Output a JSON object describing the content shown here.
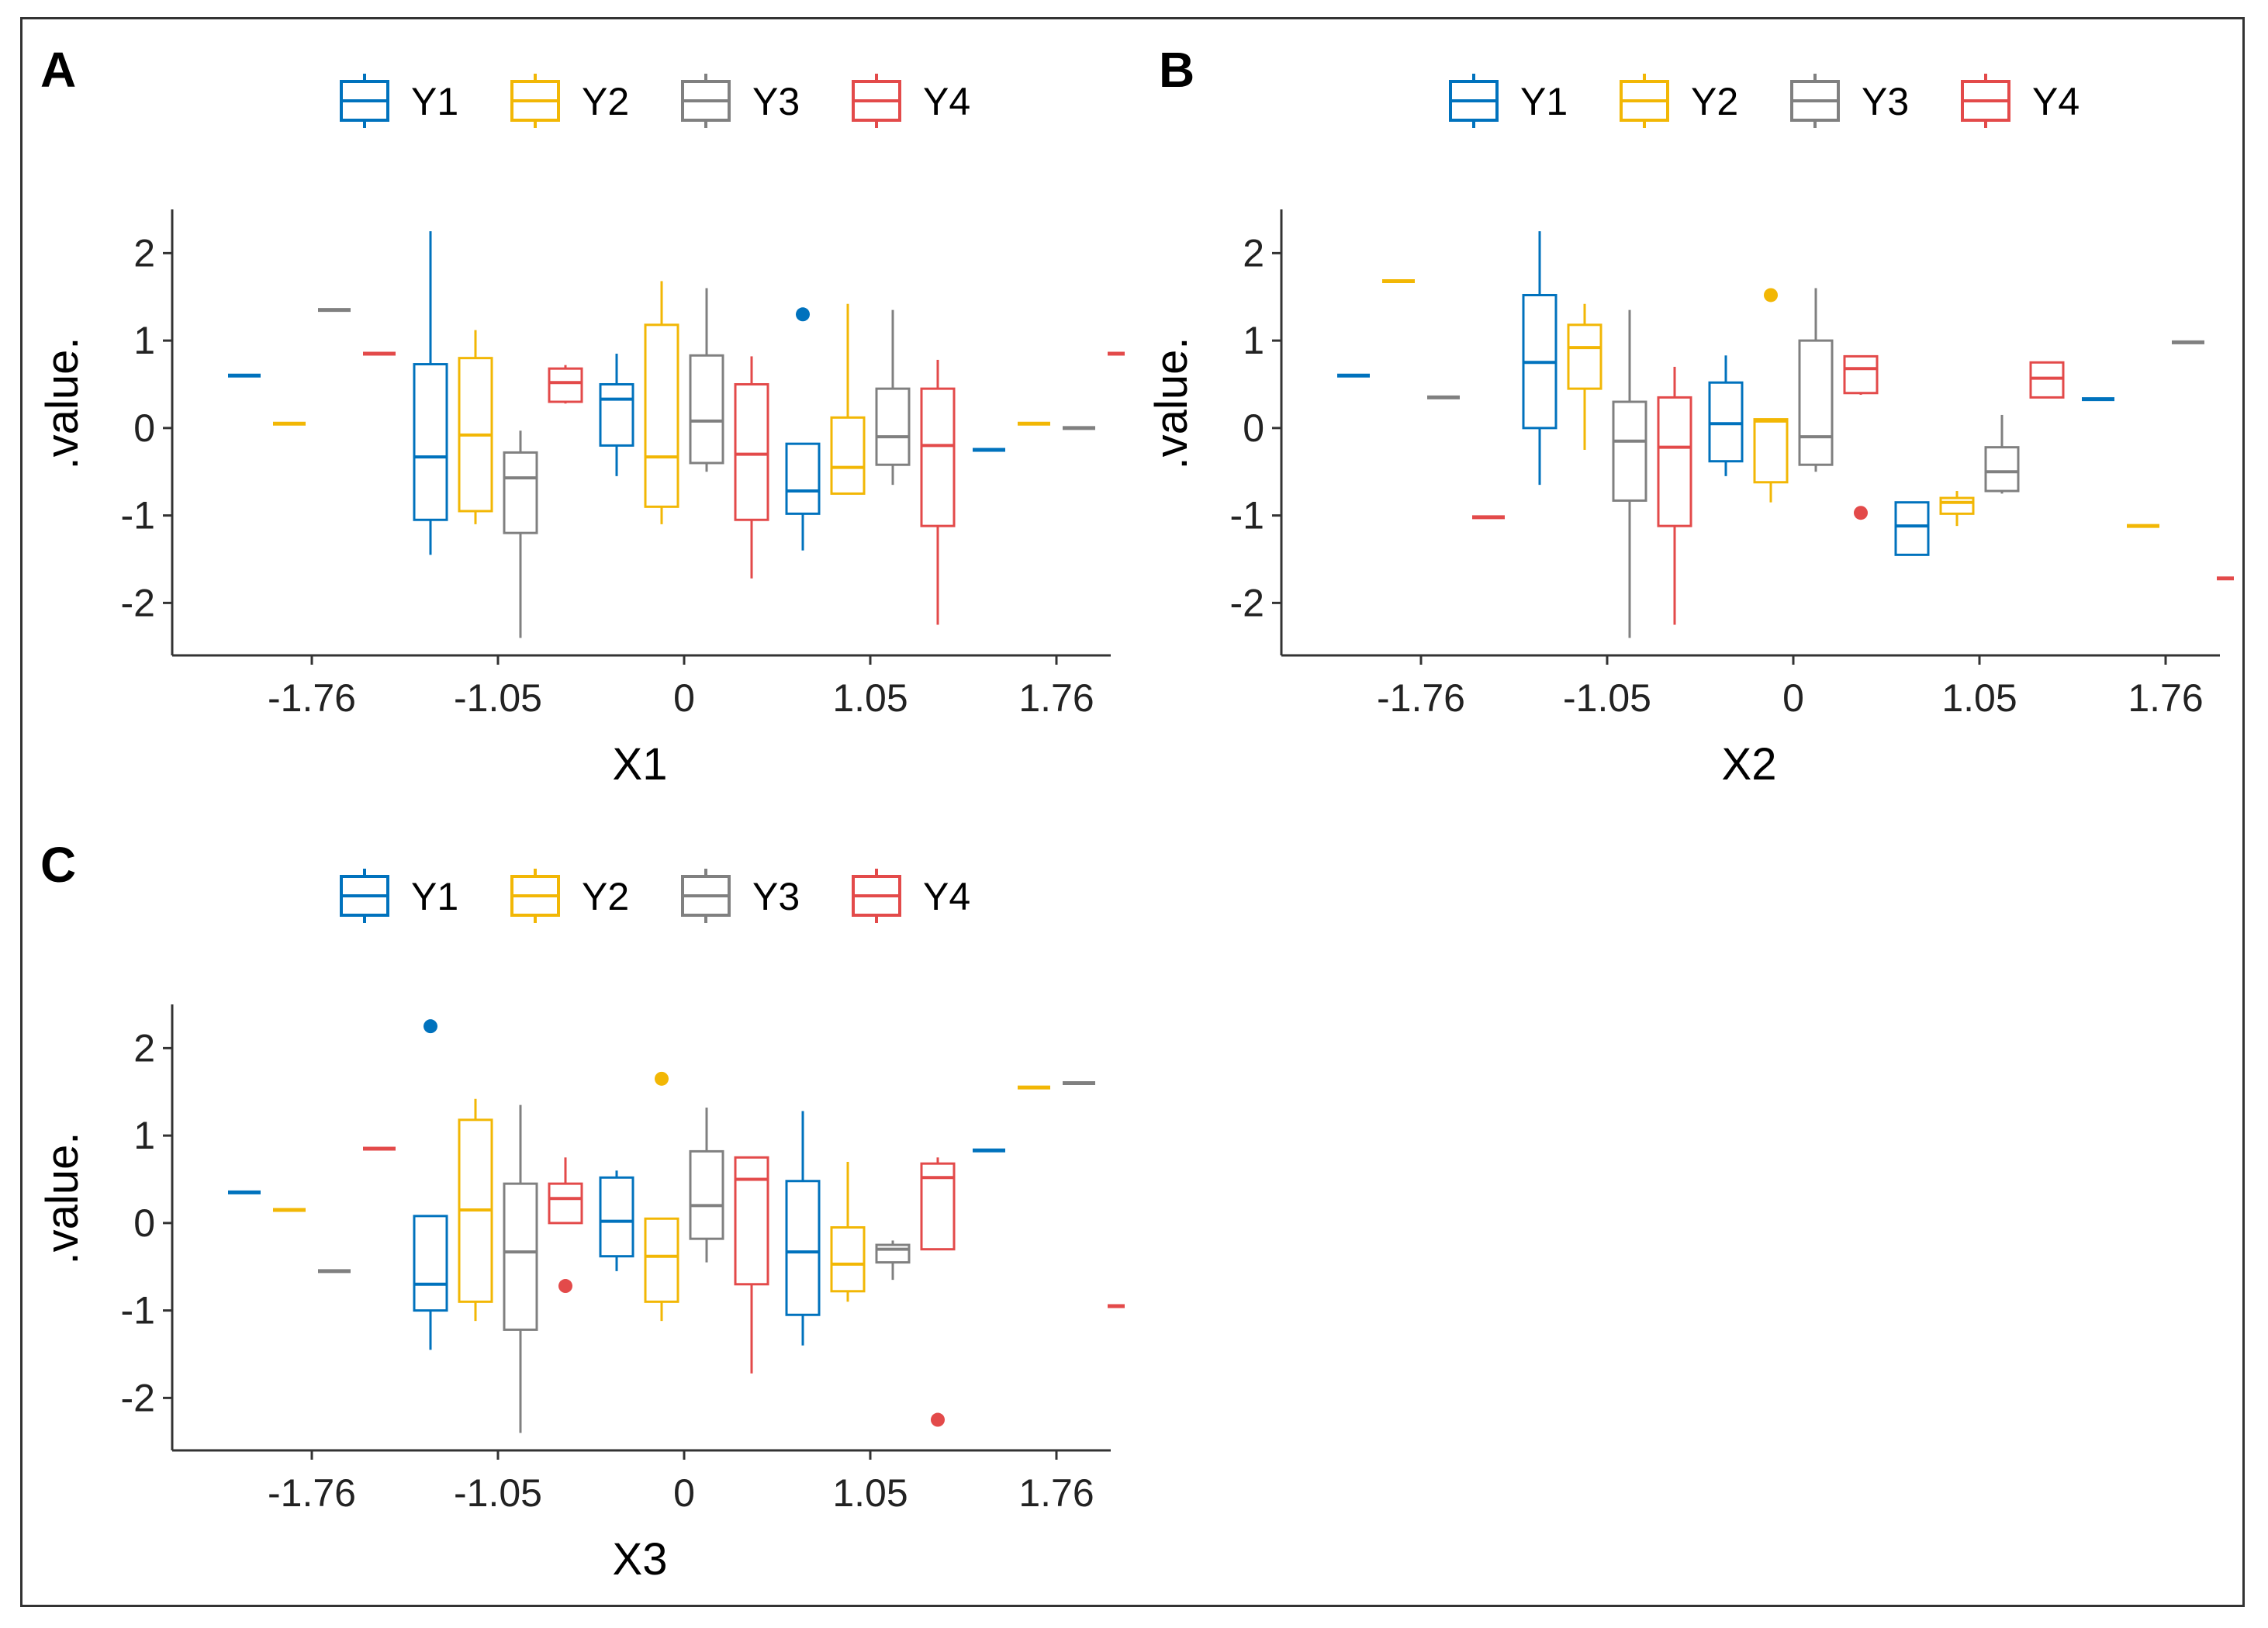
{
  "legend": {
    "series": [
      {
        "name": "Y1",
        "color": "#0072BD"
      },
      {
        "name": "Y2",
        "color": "#F2B705"
      },
      {
        "name": "Y3",
        "color": "#808080"
      },
      {
        "name": "Y4",
        "color": "#E34A4A"
      }
    ]
  },
  "chart_data": [
    {
      "type": "boxplot",
      "panel": "A",
      "xlabel": "X1",
      "ylabel": ".value.",
      "categories": [
        "-1.76",
        "-1.05",
        "0",
        "1.05",
        "1.76"
      ],
      "yticks": [
        "2",
        "1",
        "0",
        "-1",
        "-2"
      ],
      "ylim": [
        -2.6,
        2.5
      ],
      "series": [
        {
          "name": "Y1",
          "boxes": [
            {
              "min": 0.6,
              "q1": 0.6,
              "median": 0.6,
              "q3": 0.6,
              "max": 0.6,
              "outliers": []
            },
            {
              "min": -1.45,
              "q1": -1.05,
              "median": -0.33,
              "q3": 0.73,
              "max": 2.25,
              "outliers": []
            },
            {
              "min": -0.55,
              "q1": -0.2,
              "median": 0.33,
              "q3": 0.5,
              "max": 0.85,
              "outliers": []
            },
            {
              "min": -1.4,
              "q1": -0.98,
              "median": -0.72,
              "q3": -0.18,
              "max": -0.18,
              "outliers": [
                1.3
              ]
            },
            {
              "min": -0.25,
              "q1": -0.25,
              "median": -0.25,
              "q3": -0.25,
              "max": -0.25,
              "outliers": []
            }
          ]
        },
        {
          "name": "Y2",
          "boxes": [
            {
              "min": 0.05,
              "q1": 0.05,
              "median": 0.05,
              "q3": 0.05,
              "max": 0.05,
              "outliers": []
            },
            {
              "min": -1.1,
              "q1": -0.95,
              "median": -0.08,
              "q3": 0.8,
              "max": 1.12,
              "outliers": []
            },
            {
              "min": -1.1,
              "q1": -0.9,
              "median": -0.33,
              "q3": 1.18,
              "max": 1.68,
              "outliers": []
            },
            {
              "min": -0.75,
              "q1": -0.75,
              "median": -0.45,
              "q3": 0.12,
              "max": 1.42,
              "outliers": []
            },
            {
              "min": 0.05,
              "q1": 0.05,
              "median": 0.05,
              "q3": 0.05,
              "max": 0.05,
              "outliers": []
            }
          ]
        },
        {
          "name": "Y3",
          "boxes": [
            {
              "min": 1.35,
              "q1": 1.35,
              "median": 1.35,
              "q3": 1.35,
              "max": 1.35,
              "outliers": []
            },
            {
              "min": -2.4,
              "q1": -1.2,
              "median": -0.57,
              "q3": -0.28,
              "max": -0.03,
              "outliers": []
            },
            {
              "min": -0.5,
              "q1": -0.4,
              "median": 0.08,
              "q3": 0.83,
              "max": 1.6,
              "outliers": []
            },
            {
              "min": -0.65,
              "q1": -0.42,
              "median": -0.1,
              "q3": 0.45,
              "max": 1.35,
              "outliers": []
            },
            {
              "min": 0.0,
              "q1": 0.0,
              "median": 0.0,
              "q3": 0.0,
              "max": 0.0,
              "outliers": []
            }
          ]
        },
        {
          "name": "Y4",
          "boxes": [
            {
              "min": 0.85,
              "q1": 0.85,
              "median": 0.85,
              "q3": 0.85,
              "max": 0.85,
              "outliers": []
            },
            {
              "min": 0.28,
              "q1": 0.3,
              "median": 0.52,
              "q3": 0.68,
              "max": 0.72,
              "outliers": []
            },
            {
              "min": -1.72,
              "q1": -1.05,
              "median": -0.3,
              "q3": 0.5,
              "max": 0.82,
              "outliers": []
            },
            {
              "min": -2.25,
              "q1": -1.12,
              "median": -0.2,
              "q3": 0.45,
              "max": 0.78,
              "outliers": []
            },
            {
              "min": 0.85,
              "q1": 0.85,
              "median": 0.85,
              "q3": 0.85,
              "max": 0.85,
              "outliers": []
            }
          ]
        }
      ]
    },
    {
      "type": "boxplot",
      "panel": "B",
      "xlabel": "X2",
      "ylabel": ".value.",
      "categories": [
        "-1.76",
        "-1.05",
        "0",
        "1.05",
        "1.76"
      ],
      "yticks": [
        "2",
        "1",
        "0",
        "-1",
        "-2"
      ],
      "ylim": [
        -2.6,
        2.5
      ],
      "series": [
        {
          "name": "Y1",
          "boxes": [
            {
              "min": 0.6,
              "q1": 0.6,
              "median": 0.6,
              "q3": 0.6,
              "max": 0.6,
              "outliers": []
            },
            {
              "min": -0.65,
              "q1": 0.0,
              "median": 0.75,
              "q3": 1.52,
              "max": 2.25,
              "outliers": []
            },
            {
              "min": -0.55,
              "q1": -0.38,
              "median": 0.05,
              "q3": 0.52,
              "max": 0.83,
              "outliers": []
            },
            {
              "min": -1.45,
              "q1": -1.45,
              "median": -1.12,
              "q3": -0.85,
              "max": -0.85,
              "outliers": []
            },
            {
              "min": 0.33,
              "q1": 0.33,
              "median": 0.33,
              "q3": 0.33,
              "max": 0.33,
              "outliers": []
            }
          ]
        },
        {
          "name": "Y2",
          "boxes": [
            {
              "min": 1.68,
              "q1": 1.68,
              "median": 1.68,
              "q3": 1.68,
              "max": 1.68,
              "outliers": []
            },
            {
              "min": -0.25,
              "q1": 0.45,
              "median": 0.92,
              "q3": 1.18,
              "max": 1.42,
              "outliers": []
            },
            {
              "min": -0.85,
              "q1": -0.62,
              "median": 0.08,
              "q3": 0.1,
              "max": 0.1,
              "outliers": [
                1.52
              ]
            },
            {
              "min": -1.12,
              "q1": -0.98,
              "median": -0.85,
              "q3": -0.8,
              "max": -0.72,
              "outliers": []
            },
            {
              "min": -1.12,
              "q1": -1.12,
              "median": -1.12,
              "q3": -1.12,
              "max": -1.12,
              "outliers": []
            }
          ]
        },
        {
          "name": "Y3",
          "boxes": [
            {
              "min": 0.35,
              "q1": 0.35,
              "median": 0.35,
              "q3": 0.35,
              "max": 0.35,
              "outliers": []
            },
            {
              "min": -2.4,
              "q1": -0.83,
              "median": -0.15,
              "q3": 0.3,
              "max": 1.35,
              "outliers": []
            },
            {
              "min": -0.5,
              "q1": -0.42,
              "median": -0.1,
              "q3": 1.0,
              "max": 1.6,
              "outliers": []
            },
            {
              "min": -0.75,
              "q1": -0.72,
              "median": -0.5,
              "q3": -0.22,
              "max": 0.15,
              "outliers": []
            },
            {
              "min": 0.98,
              "q1": 0.98,
              "median": 0.98,
              "q3": 0.98,
              "max": 0.98,
              "outliers": []
            }
          ]
        },
        {
          "name": "Y4",
          "boxes": [
            {
              "min": -1.02,
              "q1": -1.02,
              "median": -1.02,
              "q3": -1.02,
              "max": -1.02,
              "outliers": []
            },
            {
              "min": -2.25,
              "q1": -1.12,
              "median": -0.22,
              "q3": 0.35,
              "max": 0.7,
              "outliers": []
            },
            {
              "min": 0.38,
              "q1": 0.4,
              "median": 0.68,
              "q3": 0.82,
              "max": 0.82,
              "outliers": [
                -0.97
              ]
            },
            {
              "min": 0.35,
              "q1": 0.35,
              "median": 0.57,
              "q3": 0.75,
              "max": 0.75,
              "outliers": []
            },
            {
              "min": -1.72,
              "q1": -1.72,
              "median": -1.72,
              "q3": -1.72,
              "max": -1.72,
              "outliers": []
            }
          ]
        }
      ]
    },
    {
      "type": "boxplot",
      "panel": "C",
      "xlabel": "X3",
      "ylabel": ".value.",
      "categories": [
        "-1.76",
        "-1.05",
        "0",
        "1.05",
        "1.76"
      ],
      "yticks": [
        "2",
        "1",
        "0",
        "-1",
        "-2"
      ],
      "ylim": [
        -2.6,
        2.5
      ],
      "series": [
        {
          "name": "Y1",
          "boxes": [
            {
              "min": 0.35,
              "q1": 0.35,
              "median": 0.35,
              "q3": 0.35,
              "max": 0.35,
              "outliers": []
            },
            {
              "min": -1.45,
              "q1": -1.0,
              "median": -0.7,
              "q3": 0.08,
              "max": 0.08,
              "outliers": [
                2.25
              ]
            },
            {
              "min": -0.55,
              "q1": -0.38,
              "median": 0.02,
              "q3": 0.52,
              "max": 0.6,
              "outliers": []
            },
            {
              "min": -1.4,
              "q1": -1.05,
              "median": -0.33,
              "q3": 0.48,
              "max": 1.28,
              "outliers": []
            },
            {
              "min": 0.83,
              "q1": 0.83,
              "median": 0.83,
              "q3": 0.83,
              "max": 0.83,
              "outliers": []
            }
          ]
        },
        {
          "name": "Y2",
          "boxes": [
            {
              "min": 0.15,
              "q1": 0.15,
              "median": 0.15,
              "q3": 0.15,
              "max": 0.15,
              "outliers": []
            },
            {
              "min": -1.12,
              "q1": -0.9,
              "median": 0.15,
              "q3": 1.18,
              "max": 1.42,
              "outliers": []
            },
            {
              "min": -1.12,
              "q1": -0.9,
              "median": -0.38,
              "q3": 0.05,
              "max": 0.05,
              "outliers": [
                1.65
              ]
            },
            {
              "min": -0.9,
              "q1": -0.78,
              "median": -0.47,
              "q3": -0.05,
              "max": 0.7,
              "outliers": []
            },
            {
              "min": 1.55,
              "q1": 1.55,
              "median": 1.55,
              "q3": 1.55,
              "max": 1.55,
              "outliers": []
            }
          ]
        },
        {
          "name": "Y3",
          "boxes": [
            {
              "min": -0.55,
              "q1": -0.55,
              "median": -0.55,
              "q3": -0.55,
              "max": -0.55,
              "outliers": []
            },
            {
              "min": -2.4,
              "q1": -1.22,
              "median": -0.33,
              "q3": 0.45,
              "max": 1.35,
              "outliers": []
            },
            {
              "min": -0.45,
              "q1": -0.18,
              "median": 0.2,
              "q3": 0.82,
              "max": 1.32,
              "outliers": []
            },
            {
              "min": -0.65,
              "q1": -0.45,
              "median": -0.3,
              "q3": -0.25,
              "max": -0.2,
              "outliers": []
            },
            {
              "min": 1.6,
              "q1": 1.6,
              "median": 1.6,
              "q3": 1.6,
              "max": 1.6,
              "outliers": []
            }
          ]
        },
        {
          "name": "Y4",
          "boxes": [
            {
              "min": 0.85,
              "q1": 0.85,
              "median": 0.85,
              "q3": 0.85,
              "max": 0.85,
              "outliers": []
            },
            {
              "min": 0.0,
              "q1": 0.0,
              "median": 0.28,
              "q3": 0.45,
              "max": 0.75,
              "outliers": [
                -0.72
              ]
            },
            {
              "min": -1.72,
              "q1": -0.7,
              "median": 0.5,
              "q3": 0.75,
              "max": 0.75,
              "outliers": []
            },
            {
              "min": -0.3,
              "q1": -0.3,
              "median": 0.52,
              "q3": 0.68,
              "max": 0.75,
              "outliers": [
                -2.25
              ]
            },
            {
              "min": -0.95,
              "q1": -0.95,
              "median": -0.95,
              "q3": -0.95,
              "max": -0.95,
              "outliers": []
            }
          ]
        }
      ]
    }
  ]
}
